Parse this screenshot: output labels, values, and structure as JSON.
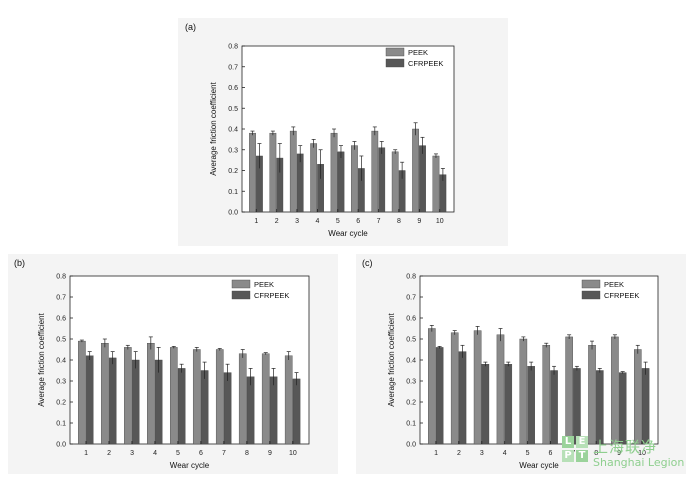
{
  "chart_data": [
    {
      "type": "bar",
      "panel_label": "(a)",
      "xlabel": "Wear cycle",
      "ylabel": "Average friction coefficient",
      "ylim": [
        0,
        0.8
      ],
      "yticks": [
        "0.0",
        "0.1",
        "0.2",
        "0.3",
        "0.4",
        "0.5",
        "0.6",
        "0.7",
        "0.8"
      ],
      "categories": [
        "1",
        "2",
        "3",
        "4",
        "5",
        "6",
        "7",
        "8",
        "9",
        "10"
      ],
      "legend_position": "top-right",
      "series": [
        {
          "name": "PEEK",
          "values": [
            0.38,
            0.38,
            0.39,
            0.33,
            0.38,
            0.32,
            0.39,
            0.29,
            0.4,
            0.27
          ],
          "errors": [
            0.01,
            0.01,
            0.02,
            0.02,
            0.02,
            0.02,
            0.02,
            0.01,
            0.03,
            0.01
          ]
        },
        {
          "name": "CFRPEEK",
          "values": [
            0.27,
            0.26,
            0.28,
            0.23,
            0.29,
            0.21,
            0.31,
            0.2,
            0.32,
            0.18
          ],
          "errors": [
            0.06,
            0.07,
            0.04,
            0.07,
            0.03,
            0.06,
            0.03,
            0.04,
            0.04,
            0.03
          ]
        }
      ]
    },
    {
      "type": "bar",
      "panel_label": "(b)",
      "xlabel": "Wear cycle",
      "ylabel": "Average friction coefficient",
      "ylim": [
        0,
        0.8
      ],
      "yticks": [
        "0.0",
        "0.1",
        "0.2",
        "0.3",
        "0.4",
        "0.5",
        "0.6",
        "0.7",
        "0.8"
      ],
      "categories": [
        "1",
        "2",
        "3",
        "4",
        "5",
        "6",
        "7",
        "8",
        "9",
        "10"
      ],
      "legend_position": "top-right",
      "series": [
        {
          "name": "PEEK",
          "values": [
            0.49,
            0.48,
            0.46,
            0.48,
            0.46,
            0.45,
            0.45,
            0.43,
            0.43,
            0.42
          ],
          "errors": [
            0.005,
            0.02,
            0.01,
            0.03,
            0.005,
            0.01,
            0.005,
            0.02,
            0.005,
            0.02
          ]
        },
        {
          "name": "CFRPEEK",
          "values": [
            0.42,
            0.41,
            0.4,
            0.4,
            0.36,
            0.35,
            0.34,
            0.32,
            0.32,
            0.31
          ],
          "errors": [
            0.02,
            0.03,
            0.04,
            0.06,
            0.02,
            0.04,
            0.04,
            0.04,
            0.04,
            0.03
          ]
        }
      ]
    },
    {
      "type": "bar",
      "panel_label": "(c)",
      "xlabel": "Wear cycle",
      "ylabel": "Average friction coefficient",
      "ylim": [
        0,
        0.8
      ],
      "yticks": [
        "0.0",
        "0.1",
        "0.2",
        "0.3",
        "0.4",
        "0.5",
        "0.6",
        "0.7",
        "0.8"
      ],
      "categories": [
        "1",
        "2",
        "3",
        "4",
        "5",
        "6",
        "7",
        "8",
        "9",
        "10"
      ],
      "legend_position": "top-right",
      "series": [
        {
          "name": "PEEK",
          "values": [
            0.55,
            0.53,
            0.54,
            0.52,
            0.5,
            0.47,
            0.51,
            0.47,
            0.51,
            0.45
          ],
          "errors": [
            0.015,
            0.01,
            0.02,
            0.03,
            0.01,
            0.01,
            0.01,
            0.02,
            0.01,
            0.02
          ]
        },
        {
          "name": "CFRPEEK",
          "values": [
            0.46,
            0.44,
            0.38,
            0.38,
            0.37,
            0.35,
            0.36,
            0.35,
            0.34,
            0.36
          ],
          "errors": [
            0.005,
            0.03,
            0.01,
            0.01,
            0.02,
            0.02,
            0.01,
            0.01,
            0.005,
            0.03
          ]
        }
      ]
    }
  ],
  "watermark": {
    "logo_letters": [
      "L",
      "E",
      "P",
      "T"
    ],
    "chinese": "上海联净",
    "english": "Shanghai Legion"
  },
  "colors": {
    "peek": "#8a8a8a",
    "cfrpeek": "#575757",
    "axis": "#222222",
    "panel_bg": "#f4f4f4",
    "watermark": "#8fcf8f"
  }
}
